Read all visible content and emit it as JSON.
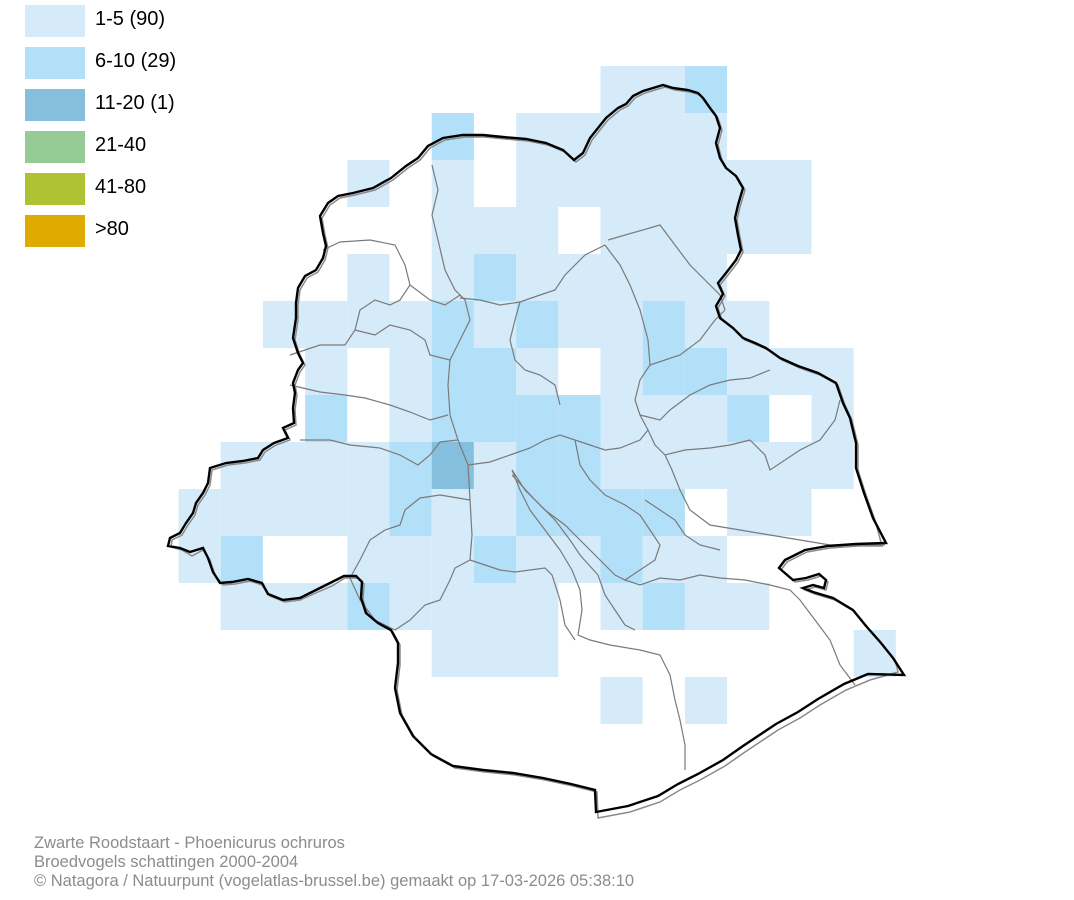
{
  "legend": {
    "items": [
      {
        "label": "1-5 (90)",
        "color": "#d5ebfa"
      },
      {
        "label": "6-10 (29)",
        "color": "#b3e0f9"
      },
      {
        "label": "11-20 (1)",
        "color": "#85bfdd"
      },
      {
        "label": "21-40",
        "color": "#96cb96"
      },
      {
        "label": "41-80",
        "color": "#afc234"
      },
      {
        "label": ">80",
        "color": "#e0ab00"
      }
    ]
  },
  "caption": {
    "species": "Zwarte Roodstaart - Phoenicurus ochruros",
    "subtitle": "Broedvogels schattingen 2000-2004",
    "credits": "© Natagora / Natuurpunt (vogelatlas-brussel.be) gemaakt op 17-03-2026 05:38:10"
  },
  "map": {
    "grid_levels": {
      "level1": "1-5",
      "level2": "6-10",
      "level3": "11-20"
    },
    "colors": {
      "border": "#000000",
      "border_shadow": "#8a8a8a",
      "municipality_lines": "#7a7a7a"
    }
  }
}
